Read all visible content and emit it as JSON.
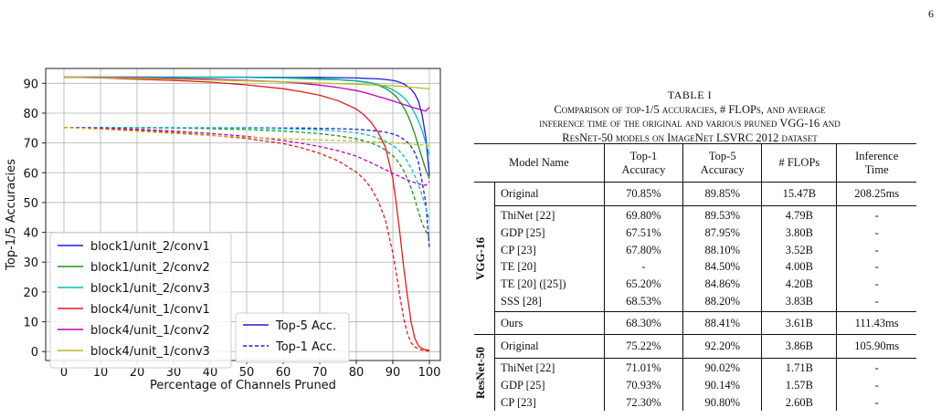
{
  "page_number": "6",
  "chart_data": {
    "type": "line",
    "xlabel": "Percentage of Channels Pruned",
    "ylabel": "Top-1/5 Accuracies",
    "xlim": [
      -5,
      103
    ],
    "ylim": [
      -3,
      95
    ],
    "xticks": [
      0,
      10,
      20,
      30,
      40,
      50,
      60,
      70,
      80,
      90,
      100
    ],
    "yticks": [
      0,
      10,
      20,
      30,
      40,
      50,
      60,
      70,
      80,
      90
    ],
    "grid": true,
    "legend_layers": {
      "placement": "bottom-left",
      "entries": [
        "block1/unit_2/conv1",
        "block1/unit_2/conv2",
        "block1/unit_2/conv3",
        "block4/unit_1/conv1",
        "block4/unit_1/conv2",
        "block4/unit_1/conv3"
      ]
    },
    "legend_style": {
      "placement": "bottom-center",
      "entries": [
        "Top-5 Acc.",
        "Top-1 Acc."
      ]
    },
    "x": [
      0,
      10,
      20,
      30,
      40,
      50,
      60,
      65,
      70,
      75,
      80,
      82,
      84,
      86,
      88,
      90,
      91,
      92,
      93,
      94,
      95,
      96,
      97,
      98,
      99,
      100
    ],
    "series": [
      {
        "name": "block1/unit_2/conv1",
        "style": "Top-5 Acc.",
        "color": "#1f1fd6",
        "values": [
          92.1,
          92.1,
          92.1,
          92.1,
          92.1,
          92.1,
          92,
          92,
          92,
          91.9,
          91.8,
          91.7,
          91.6,
          91.5,
          91.3,
          91,
          90.7,
          90.3,
          89.8,
          89,
          88,
          86.5,
          84,
          79.5,
          72,
          59
        ]
      },
      {
        "name": "block1/unit_2/conv1",
        "style": "Top-1 Acc.",
        "color": "#1f1fd6",
        "values": [
          75.2,
          75.2,
          75.2,
          75.1,
          75.1,
          75.1,
          75,
          75,
          74.9,
          74.8,
          74.6,
          74.4,
          74.2,
          74,
          73.6,
          73,
          72.6,
          72,
          71.2,
          70.2,
          68.8,
          66.8,
          63.5,
          57,
          50,
          35
        ]
      },
      {
        "name": "block1/unit_2/conv2",
        "style": "Top-5 Acc.",
        "color": "#208f20",
        "values": [
          92.1,
          92.1,
          92.1,
          92.1,
          92,
          92,
          91.8,
          91.6,
          91.4,
          91.2,
          90.8,
          90.5,
          90.1,
          89.4,
          88.3,
          86.6,
          85.4,
          83.8,
          81.8,
          79.5,
          76.5,
          73,
          69,
          65,
          61,
          58
        ]
      },
      {
        "name": "block1/unit_2/conv2",
        "style": "Top-1 Acc.",
        "color": "#208f20",
        "values": [
          75.2,
          75.2,
          75.1,
          75,
          74.8,
          74.5,
          74,
          73.6,
          73.1,
          72.4,
          71.4,
          70.8,
          70,
          69,
          67.6,
          65.7,
          64.4,
          62.7,
          60.6,
          58,
          54.9,
          51.2,
          47,
          43,
          40.5,
          38
        ]
      },
      {
        "name": "block1/unit_2/conv3",
        "style": "Top-5 Acc.",
        "color": "#00bfbf",
        "values": [
          92.1,
          92.1,
          92.1,
          92.1,
          92.1,
          92,
          91.9,
          91.8,
          91.6,
          91.3,
          90.9,
          90.6,
          90.2,
          89.6,
          88.9,
          87.8,
          87.1,
          86.2,
          85.2,
          83.8,
          82.1,
          80,
          77.4,
          74.2,
          70,
          66
        ]
      },
      {
        "name": "block1/unit_2/conv3",
        "style": "Top-1 Acc.",
        "color": "#00bfbf",
        "values": [
          75.2,
          75.2,
          75.2,
          75.1,
          75.1,
          75,
          74.8,
          74.6,
          74.4,
          74,
          73.4,
          73,
          72.4,
          71.6,
          70.6,
          69.1,
          68.2,
          67,
          65.6,
          63.8,
          61.6,
          59,
          56,
          52.5,
          48.5,
          44
        ]
      },
      {
        "name": "block4/unit_1/conv1",
        "style": "Top-5 Acc.",
        "color": "#e41a1c",
        "values": [
          92.1,
          91.8,
          91.4,
          91,
          90.4,
          89.5,
          88.2,
          87.2,
          86,
          84.2,
          81.4,
          79.5,
          77,
          73.5,
          68.5,
          58,
          49,
          39,
          28,
          18.5,
          10,
          4.5,
          2,
          1,
          0.6,
          0.5
        ]
      },
      {
        "name": "block4/unit_1/conv1",
        "style": "Top-1 Acc.",
        "color": "#e41a1c",
        "values": [
          75.2,
          74.8,
          74.3,
          73.5,
          72.6,
          71.5,
          69.8,
          68.4,
          66.5,
          64,
          60.2,
          58,
          55,
          50.5,
          44,
          33,
          26,
          18,
          11,
          6,
          3,
          1.6,
          0.9,
          0.5,
          0.3,
          0.2
        ]
      },
      {
        "name": "block4/unit_1/conv2",
        "style": "Top-5 Acc.",
        "color": "#bf00bf",
        "values": [
          92.1,
          92,
          91.9,
          91.7,
          91.4,
          91,
          90.5,
          90,
          89.4,
          88.6,
          87.6,
          87,
          86.3,
          85.6,
          84.9,
          84.1,
          83.7,
          83.3,
          82.9,
          82.5,
          82.1,
          81.7,
          81.4,
          81,
          80.7,
          82
        ]
      },
      {
        "name": "block4/unit_1/conv2",
        "style": "Top-1 Acc.",
        "color": "#bf00bf",
        "values": [
          75.2,
          75,
          74.6,
          74,
          73.2,
          72.2,
          70.8,
          69.9,
          68.8,
          67.4,
          65.6,
          64.5,
          63.4,
          62.2,
          61,
          59.8,
          59.2,
          58.7,
          58.1,
          57.6,
          57.1,
          56.7,
          56.3,
          56,
          55.8,
          57
        ]
      },
      {
        "name": "block4/unit_1/conv3",
        "style": "Top-5 Acc.",
        "color": "#bcbd22",
        "values": [
          92.1,
          91.9,
          91.7,
          91.4,
          91.1,
          90.8,
          90.5,
          90.3,
          90.1,
          89.9,
          89.7,
          89.6,
          89.5,
          89.4,
          89.3,
          89.2,
          89.1,
          89,
          88.9,
          88.8,
          88.7,
          88.6,
          88.5,
          88.4,
          88.3,
          88.2
        ]
      },
      {
        "name": "block4/unit_1/conv3",
        "style": "Top-1 Acc.",
        "color": "#bcbd22",
        "values": [
          75.2,
          74.6,
          73.9,
          73.2,
          72.5,
          71.9,
          71.4,
          71.2,
          71,
          70.8,
          70.6,
          70.5,
          70.4,
          70.3,
          70.2,
          70.1,
          70,
          69.9,
          69.8,
          69.7,
          69.6,
          69.5,
          69.4,
          69.3,
          69.2,
          69.1
        ]
      }
    ]
  },
  "table": {
    "label": "TABLE I",
    "caption_line1": "Comparison of top-1/5 accuracies, # FLOPs, and average",
    "caption_line2": "inference time of the original and various pruned VGG-16 and",
    "caption_line3": "ResNet-50 models on ImageNet LSVRC 2012 dataset",
    "headers": [
      "Model Name",
      "Top-1 Accuracy",
      "Top-5 Accuracy",
      "# FLOPs",
      "Inference Time"
    ],
    "h_top1_a": "Top-1",
    "h_top1_b": "Accuracy",
    "h_top5_a": "Top-5",
    "h_top5_b": "Accuracy",
    "h_inf_a": "Inference",
    "h_inf_b": "Time",
    "vgg_label": "VGG-16",
    "resnet_label": "ResNet-50",
    "vgg_original": [
      "Original",
      "70.85%",
      "89.85%",
      "15.47B",
      "208.25ms"
    ],
    "vgg_rows": [
      [
        "ThiNet [22]",
        "69.80%",
        "89.53%",
        "4.79B",
        "-"
      ],
      [
        "GDP [25]",
        "67.51%",
        "87.95%",
        "3.80B",
        "-"
      ],
      [
        "CP [23]",
        "67.80%",
        "88.10%",
        "3.52B",
        "-"
      ],
      [
        "TE [20]",
        "-",
        "84.50%",
        "4.00B",
        "-"
      ],
      [
        "TE [20] ([25])",
        "65.20%",
        "84.86%",
        "4.20B",
        "-"
      ],
      [
        "SSS [28]",
        "68.53%",
        "88.20%",
        "3.83B",
        "-"
      ]
    ],
    "vgg_ours": [
      "Ours",
      "68.30%",
      "88.41%",
      "3.61B",
      "111.43ms"
    ],
    "res_original": [
      "Original",
      "75.22%",
      "92.20%",
      "3.86B",
      "105.90ms"
    ],
    "res_rows": [
      [
        "ThiNet [22]",
        "71.01%",
        "90.02%",
        "1.71B",
        "-"
      ],
      [
        "GDP [25]",
        "70.93%",
        "90.14%",
        "1.57B",
        "-"
      ],
      [
        "CP [23]",
        "72.30%",
        "90.80%",
        "2.60B",
        "-"
      ]
    ]
  }
}
